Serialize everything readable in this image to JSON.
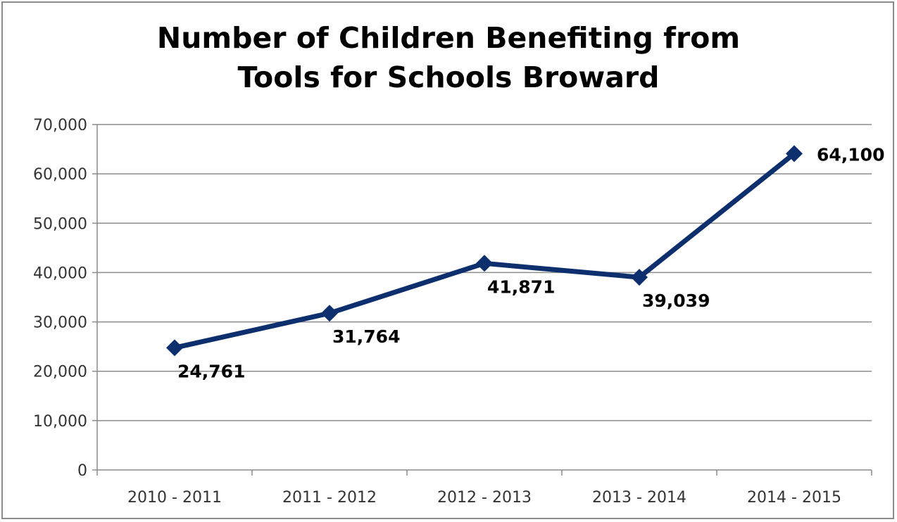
{
  "chart_data": {
    "type": "line",
    "title_lines": [
      "Number of Children Benefiting from",
      "Tools for Schools Broward"
    ],
    "categories": [
      "2010 - 2011",
      "2011 - 2012",
      "2012 - 2013",
      "2013 - 2014",
      "2014 - 2015"
    ],
    "series": [
      {
        "values": [
          24761,
          31764,
          41871,
          39039,
          64100
        ],
        "data_labels": [
          "24,761",
          "31,764",
          "41,871",
          "39,039",
          "64,100"
        ],
        "color": "#0d2f6e",
        "marker": "diamond"
      }
    ],
    "y_ticks": [
      "0",
      "10,000",
      "20,000",
      "30,000",
      "40,000",
      "50,000",
      "60,000",
      "70,000"
    ],
    "ylim": [
      0,
      70000
    ],
    "grid": true,
    "legend": "none",
    "xlabel": "",
    "ylabel": ""
  }
}
